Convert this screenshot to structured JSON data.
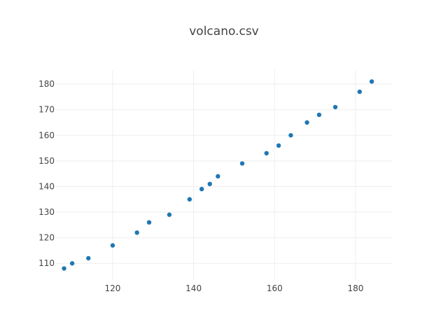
{
  "chart_data": {
    "type": "scatter",
    "title": "volcano.csv",
    "xlabel": "",
    "ylabel": "",
    "xlim": [
      106,
      189
    ],
    "ylim": [
      103.5,
      185.5
    ],
    "x_ticks": [
      120,
      140,
      160,
      180
    ],
    "y_ticks": [
      110,
      120,
      130,
      140,
      150,
      160,
      170,
      180
    ],
    "grid": true,
    "marker_color": "#1f77b4",
    "series": [
      {
        "x": [
          108,
          110,
          114,
          120,
          126,
          129,
          134,
          139,
          142,
          144,
          146,
          152,
          158,
          161,
          164,
          168,
          171,
          175,
          181,
          184
        ],
        "y": [
          108,
          110,
          112,
          117,
          122,
          126,
          129,
          135,
          139,
          141,
          144,
          149,
          153,
          156,
          160,
          165,
          168,
          171,
          177,
          181
        ]
      }
    ]
  }
}
